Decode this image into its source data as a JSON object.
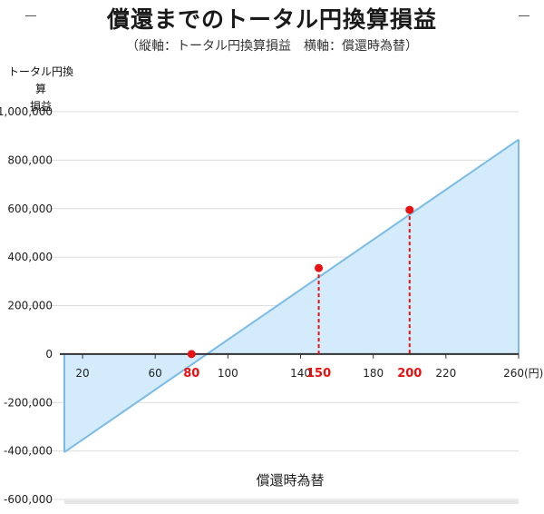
{
  "header": {
    "title": "償還までのトータル円換算損益",
    "subtitle": "（縦軸：トータル円換算損益　横軸：償還時為替）"
  },
  "chart_data": {
    "type": "area",
    "title": "償還までのトータル円換算損益",
    "ylabel_lines": [
      "トータル円換算",
      "損益"
    ],
    "xlabel": "償還時為替",
    "x_unit": "(円)",
    "series": [
      {
        "x": [
          10,
          260
        ],
        "y": [
          -405000,
          885000
        ]
      }
    ],
    "highlight_points": [
      {
        "x": 80,
        "y": 0,
        "label": "80"
      },
      {
        "x": 150,
        "y": 355000,
        "label": "150"
      },
      {
        "x": 200,
        "y": 595000,
        "label": "200"
      }
    ],
    "x_ticks": [
      "20",
      "60",
      "100",
      "140",
      "180",
      "220",
      "260"
    ],
    "x_tick_values": [
      20,
      60,
      100,
      140,
      180,
      220,
      260
    ],
    "y_ticks": [
      "1,000,000",
      "800,000",
      "600,000",
      "400,000",
      "200,000",
      "0",
      "-200,000",
      "-400,000",
      "-600,000"
    ],
    "y_tick_values": [
      1000000,
      800000,
      600000,
      400000,
      200000,
      0,
      -200000,
      -400000,
      -600000
    ],
    "xlim": [
      10,
      260
    ],
    "ylim": [
      -600000,
      1000000
    ],
    "grid": true,
    "colors": {
      "line": "#7bbbe6",
      "fill": "#d3ebfa",
      "highlight": "#e81010",
      "grid": "#dddddd",
      "axis": "#333333"
    }
  }
}
